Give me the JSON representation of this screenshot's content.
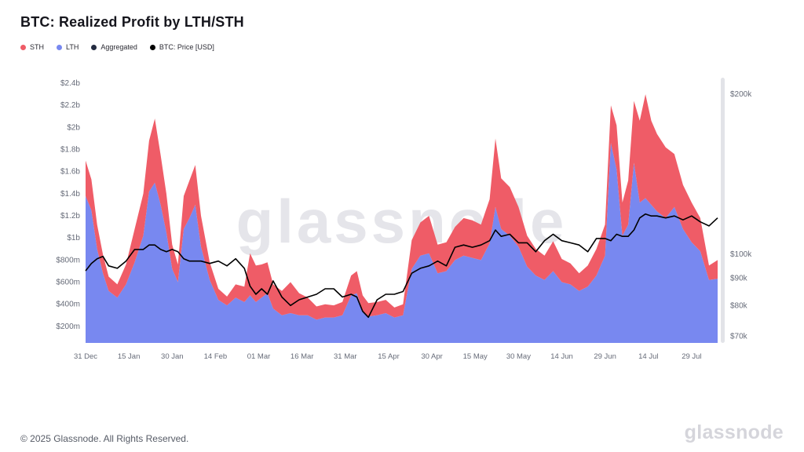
{
  "header": {
    "title": "BTC: Realized Profit by LTH/STH"
  },
  "legend": {
    "items": [
      {
        "label": "STH",
        "color": "#ef5c67"
      },
      {
        "label": "LTH",
        "color": "#7888f0"
      },
      {
        "label": "Aggregated",
        "color": "#232b40"
      },
      {
        "label": "BTC: Price [USD]",
        "color": "#000000"
      }
    ]
  },
  "watermark": "glassnode",
  "chart_data": {
    "type": "area",
    "subtype": "stacked area (LTH + STH realized profit) with BTC price line on log right axis",
    "title": "BTC: Realized Profit by LTH/STH",
    "x_unit": "date (31 Dec 2024 - 07 Aug 2025)",
    "grid": "off",
    "legend_position": "top-left",
    "days": [
      0,
      2,
      4,
      6,
      8,
      11,
      14,
      17,
      20,
      22,
      24,
      26,
      28,
      30,
      32,
      34,
      36,
      38,
      40,
      43,
      46,
      49,
      52,
      55,
      57,
      59,
      61,
      63,
      65,
      68,
      71,
      74,
      77,
      80,
      83,
      86,
      89,
      92,
      94,
      96,
      98,
      101,
      104,
      107,
      110,
      113,
      116,
      119,
      122,
      125,
      128,
      131,
      134,
      137,
      140,
      142,
      144,
      147,
      150,
      153,
      156,
      159,
      162,
      165,
      168,
      171,
      174,
      177,
      180,
      182,
      184,
      186,
      188,
      190,
      192,
      194,
      196,
      198,
      201,
      204,
      207,
      210,
      213,
      216,
      219
    ],
    "dates": [
      "31 Dec",
      "02 Jan",
      "04 Jan",
      "06 Jan",
      "08 Jan",
      "11 Jan",
      "14 Jan",
      "17 Jan",
      "20 Jan",
      "22 Jan",
      "24 Jan",
      "26 Jan",
      "28 Jan",
      "30 Jan",
      "01 Feb",
      "03 Feb",
      "05 Feb",
      "07 Feb",
      "09 Feb",
      "12 Feb",
      "15 Feb",
      "18 Feb",
      "21 Feb",
      "24 Feb",
      "26 Feb",
      "28 Feb",
      "02 Mar",
      "04 Mar",
      "06 Mar",
      "09 Mar",
      "12 Mar",
      "15 Mar",
      "18 Mar",
      "21 Mar",
      "24 Mar",
      "27 Mar",
      "30 Mar",
      "02 Apr",
      "04 Apr",
      "06 Apr",
      "08 Apr",
      "11 Apr",
      "14 Apr",
      "17 Apr",
      "20 Apr",
      "23 Apr",
      "26 Apr",
      "29 Apr",
      "02 May",
      "05 May",
      "08 May",
      "11 May",
      "14 May",
      "17 May",
      "20 May",
      "22 May",
      "24 May",
      "27 May",
      "30 May",
      "02 Jun",
      "05 Jun",
      "08 Jun",
      "11 Jun",
      "14 Jun",
      "17 Jun",
      "20 Jun",
      "23 Jun",
      "26 Jun",
      "29 Jun",
      "01 Jul",
      "03 Jul",
      "05 Jul",
      "07 Jul",
      "09 Jul",
      "11 Jul",
      "13 Jul",
      "15 Jul",
      "17 Jul",
      "20 Jul",
      "23 Jul",
      "26 Jul",
      "29 Jul",
      "01 Aug",
      "04 Aug",
      "07 Aug"
    ],
    "series": [
      {
        "name": "STH",
        "color": "#ef5c67",
        "axis": "left",
        "unit": "USD billions",
        "stacked_on": "LTH",
        "values": [
          0.32,
          0.28,
          0.22,
          0.17,
          0.13,
          0.12,
          0.18,
          0.3,
          0.38,
          0.46,
          0.58,
          0.45,
          0.35,
          0.22,
          0.16,
          0.3,
          0.34,
          0.36,
          0.28,
          0.16,
          0.1,
          0.08,
          0.12,
          0.14,
          0.38,
          0.33,
          0.3,
          0.28,
          0.22,
          0.22,
          0.28,
          0.2,
          0.16,
          0.12,
          0.12,
          0.11,
          0.12,
          0.18,
          0.2,
          0.14,
          0.12,
          0.12,
          0.12,
          0.09,
          0.1,
          0.26,
          0.3,
          0.34,
          0.26,
          0.26,
          0.3,
          0.34,
          0.34,
          0.32,
          0.4,
          0.62,
          0.46,
          0.44,
          0.36,
          0.28,
          0.24,
          0.22,
          0.27,
          0.21,
          0.19,
          0.16,
          0.19,
          0.24,
          0.28,
          0.34,
          0.4,
          0.3,
          0.4,
          0.56,
          0.74,
          0.94,
          0.76,
          0.7,
          0.64,
          0.48,
          0.4,
          0.36,
          0.3,
          0.13,
          0.17
        ]
      },
      {
        "name": "LTH",
        "color": "#7888f0",
        "axis": "left",
        "unit": "USD billions",
        "values": [
          1.38,
          1.25,
          0.9,
          0.68,
          0.52,
          0.46,
          0.58,
          0.78,
          1.02,
          1.42,
          1.5,
          1.3,
          1.05,
          0.72,
          0.6,
          1.08,
          1.18,
          1.3,
          0.92,
          0.62,
          0.44,
          0.39,
          0.46,
          0.42,
          0.48,
          0.42,
          0.46,
          0.5,
          0.36,
          0.3,
          0.32,
          0.3,
          0.3,
          0.26,
          0.28,
          0.28,
          0.3,
          0.48,
          0.5,
          0.34,
          0.29,
          0.3,
          0.32,
          0.28,
          0.3,
          0.72,
          0.84,
          0.86,
          0.68,
          0.7,
          0.8,
          0.84,
          0.82,
          0.8,
          0.95,
          1.28,
          1.08,
          1.02,
          0.92,
          0.74,
          0.66,
          0.62,
          0.7,
          0.6,
          0.58,
          0.52,
          0.56,
          0.66,
          0.84,
          1.86,
          1.62,
          1.02,
          1.12,
          1.68,
          1.32,
          1.36,
          1.3,
          1.24,
          1.18,
          1.28,
          1.08,
          0.96,
          0.88,
          0.62,
          0.63
        ]
      }
    ],
    "price_line": {
      "name": "BTC: Price [USD]",
      "color": "#000000",
      "axis": "right",
      "unit": "USD thousands",
      "values": [
        93,
        96,
        98,
        99,
        95,
        94,
        97,
        102,
        102,
        104,
        104,
        102,
        101,
        102,
        101,
        98,
        97,
        97,
        97,
        96,
        97,
        95,
        98,
        94,
        87,
        84,
        86,
        84,
        89,
        83,
        80,
        82,
        83,
        84,
        86,
        86,
        83,
        84,
        83,
        78,
        76,
        82,
        84,
        84,
        85,
        92,
        94,
        95,
        97,
        95,
        103,
        104,
        103,
        104,
        106,
        111,
        108,
        109,
        105,
        105,
        101,
        106,
        109,
        106,
        105,
        104,
        101,
        107,
        107,
        106,
        109,
        108,
        108,
        111,
        117,
        119,
        118,
        118,
        117,
        118,
        116,
        118,
        115,
        113,
        117
      ]
    },
    "left_axis": {
      "min": 0.05,
      "max": 2.45,
      "unit": "USD billions",
      "scale": "linear",
      "ticks": [
        {
          "value": 0.2,
          "label": "$200m"
        },
        {
          "value": 0.4,
          "label": "$400m"
        },
        {
          "value": 0.6,
          "label": "$600m"
        },
        {
          "value": 0.8,
          "label": "$800m"
        },
        {
          "value": 1.0,
          "label": "$1b"
        },
        {
          "value": 1.2,
          "label": "$1.2b"
        },
        {
          "value": 1.4,
          "label": "$1.4b"
        },
        {
          "value": 1.6,
          "label": "$1.6b"
        },
        {
          "value": 1.8,
          "label": "$1.8b"
        },
        {
          "value": 2.0,
          "label": "$2b"
        },
        {
          "value": 2.2,
          "label": "$2.2b"
        },
        {
          "value": 2.4,
          "label": "$2.4b"
        }
      ]
    },
    "right_axis": {
      "min": 68,
      "max": 215,
      "unit": "USD thousands",
      "scale": "log",
      "ticks": [
        {
          "value": 200,
          "label": "$200k"
        },
        {
          "value": 100,
          "label": "$100k"
        },
        {
          "value": 90,
          "label": "$90k"
        },
        {
          "value": 80,
          "label": "$80k"
        },
        {
          "value": 70,
          "label": "$70k"
        }
      ]
    },
    "x_ticks": [
      {
        "day": 0,
        "label": "31 Dec"
      },
      {
        "day": 15,
        "label": "15 Jan"
      },
      {
        "day": 30,
        "label": "30 Jan"
      },
      {
        "day": 45,
        "label": "14 Feb"
      },
      {
        "day": 60,
        "label": "01 Mar"
      },
      {
        "day": 75,
        "label": "16 Mar"
      },
      {
        "day": 90,
        "label": "31 Mar"
      },
      {
        "day": 105,
        "label": "15 Apr"
      },
      {
        "day": 120,
        "label": "30 Apr"
      },
      {
        "day": 135,
        "label": "15 May"
      },
      {
        "day": 150,
        "label": "30 May"
      },
      {
        "day": 165,
        "label": "14 Jun"
      },
      {
        "day": 180,
        "label": "29 Jun"
      },
      {
        "day": 195,
        "label": "14 Jul"
      },
      {
        "day": 210,
        "label": "29 Jul"
      }
    ]
  },
  "footer": {
    "copyright": "© 2025 Glassnode. All Rights Reserved.",
    "brand": "glassnode"
  }
}
